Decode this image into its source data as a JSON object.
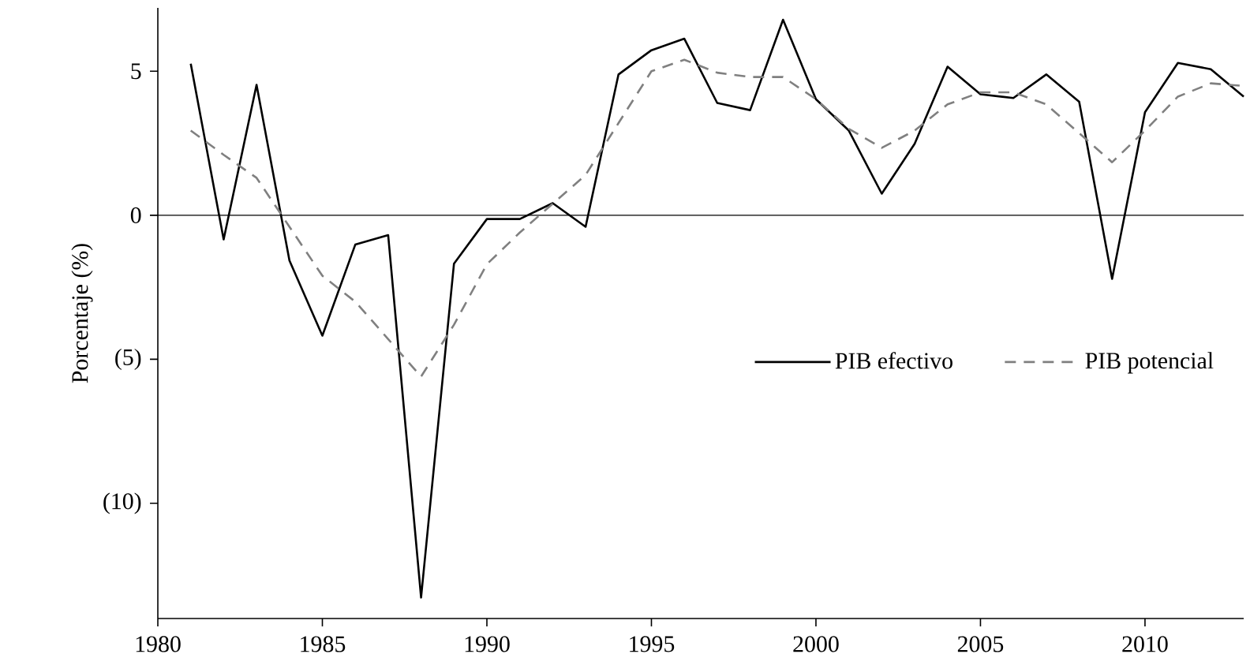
{
  "chart_data": {
    "type": "line",
    "ylabel": "Porcentaje (%)",
    "x": [
      1981,
      1982,
      1983,
      1984,
      1985,
      1986,
      1987,
      1988,
      1989,
      1990,
      1991,
      1992,
      1993,
      1994,
      1995,
      1996,
      1997,
      1998,
      1999,
      2000,
      2001,
      2002,
      2003,
      2004,
      2005,
      2006,
      2007,
      2008,
      2009,
      2010,
      2011,
      2012,
      2013
    ],
    "series": [
      {
        "name": "PIB efectivo",
        "color": "#000000",
        "line_style": "solid",
        "values": [
          5.26,
          -0.84,
          4.53,
          -1.57,
          -4.18,
          -1.02,
          -0.69,
          -13.27,
          -1.68,
          -0.13,
          -0.13,
          0.42,
          -0.4,
          4.89,
          5.73,
          6.13,
          3.9,
          3.65,
          6.79,
          4.03,
          2.94,
          0.75,
          2.48,
          5.16,
          4.2,
          4.07,
          4.89,
          3.94,
          -2.21,
          3.58,
          5.29,
          5.07,
          4.12
        ]
      },
      {
        "name": "PIB potencial",
        "color": "#808080",
        "line_style": "dashed",
        "values": [
          2.94,
          2.1,
          1.3,
          -0.4,
          -2.1,
          -3.0,
          -4.3,
          -5.6,
          -3.8,
          -1.7,
          -0.6,
          0.4,
          1.4,
          3.2,
          5.0,
          5.4,
          4.95,
          4.8,
          4.8,
          4.03,
          3.0,
          2.34,
          2.94,
          3.85,
          4.27,
          4.27,
          3.85,
          2.85,
          1.84,
          2.94,
          4.12,
          4.58,
          4.49
        ]
      }
    ],
    "xlim": [
      1980,
      2013
    ],
    "ylim": [
      -14,
      7.2
    ],
    "xticks": [
      1980,
      1985,
      1990,
      1995,
      2000,
      2005,
      2010
    ],
    "yticks": [
      {
        "value": -10,
        "label": "(10)"
      },
      {
        "value": -5,
        "label": "(5)"
      },
      0,
      5
    ],
    "ref_lines": [
      {
        "axis": "y",
        "value": 0,
        "color": "#000000"
      }
    ],
    "legend": "right",
    "grid": false,
    "marker": "none"
  }
}
